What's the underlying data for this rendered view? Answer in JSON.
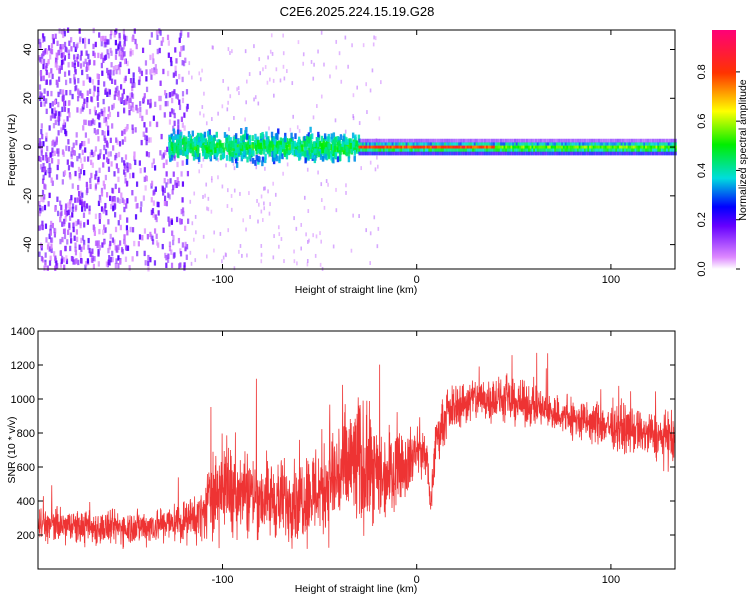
{
  "title": "C2E6.2025.224.15.19.G28",
  "chart_data": [
    {
      "type": "heatmap",
      "xlabel": "Height of straight line (km)",
      "ylabel": "Frequency (Hz)",
      "xlim": [
        -195,
        133
      ],
      "ylim": [
        -50,
        48
      ],
      "xticks": [
        "-100",
        "0",
        "100"
      ],
      "yticks": [
        "-40",
        "-20",
        "0",
        "20",
        "40"
      ],
      "colorbar": {
        "label": "Normalized spectral amplitude",
        "ticks": [
          "0.0",
          "0.2",
          "0.4",
          "0.6",
          "0.8"
        ],
        "range": [
          0,
          0.97
        ]
      },
      "regions": [
        {
          "x_range": [
            -195,
            -118
          ],
          "freq_range": [
            -50,
            48
          ],
          "amplitude": 0.1,
          "description_value": "diffuse noise"
        },
        {
          "x_range": [
            -128,
            -30
          ],
          "freq_center": 0,
          "freq_halfwidth": 8,
          "amplitude": 0.35
        },
        {
          "x_range": [
            -30,
            133
          ],
          "freq_center": 0,
          "freq_halfwidth": 3,
          "amplitude": 0.8
        }
      ],
      "grid": false
    },
    {
      "type": "line",
      "xlabel": "Height of straight line (km)",
      "ylabel": "SNR (10 * v/v)",
      "xlim": [
        -195,
        133
      ],
      "ylim": [
        0,
        1400
      ],
      "xticks": [
        "-100",
        "0",
        "100"
      ],
      "yticks": [
        "200",
        "400",
        "600",
        "800",
        "1000",
        "1200",
        "1400"
      ],
      "series": [
        {
          "color": "#ee3333",
          "x": [
            -195,
            -180,
            -160,
            -140,
            -120,
            -110,
            -105,
            -100,
            -90,
            -80,
            -70,
            -60,
            -50,
            -40,
            -35,
            -30,
            -25,
            -20,
            -15,
            -10,
            -5,
            0,
            5,
            7,
            10,
            15,
            20,
            30,
            40,
            50,
            60,
            70,
            80,
            90,
            100,
            110,
            120,
            133
          ],
          "mean": [
            260,
            250,
            240,
            250,
            280,
            320,
            460,
            480,
            470,
            420,
            400,
            420,
            470,
            560,
            600,
            620,
            580,
            520,
            560,
            640,
            620,
            700,
            680,
            360,
            760,
            900,
            960,
            1000,
            1000,
            980,
            960,
            920,
            880,
            860,
            840,
            820,
            790,
            750
          ],
          "noise": [
            130,
            130,
            130,
            130,
            150,
            200,
            330,
            350,
            330,
            300,
            300,
            330,
            380,
            450,
            500,
            520,
            450,
            380,
            350,
            300,
            250,
            200,
            180,
            120,
            170,
            170,
            170,
            170,
            170,
            160,
            150,
            150,
            160,
            160,
            170,
            170,
            170,
            180
          ]
        }
      ],
      "grid": false
    }
  ]
}
